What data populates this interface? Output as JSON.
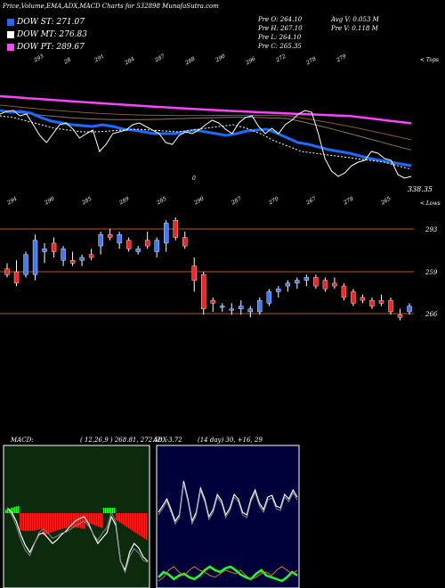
{
  "header": {
    "title": "Price,Volume,EMA,ADX,MACD Charts for 532898 MunafaSutra.com",
    "legend": [
      {
        "label": "DOW ST: 271.07",
        "color": "#1e6bff"
      },
      {
        "label": "DOW MT: 276.83",
        "color": "#ffffff"
      },
      {
        "label": "DOW PT: 289.67",
        "color": "#ff44ff"
      }
    ],
    "ohlc": [
      "Pre O: 264.10",
      "Pre H: 267.10",
      "Pre L: 264.10",
      "Pre C: 265.35"
    ],
    "volume": [
      "Avg V: 0.053 M",
      "Pre V: 0.118 M"
    ],
    "top_right_tag": "< Tops",
    "bottom_right_tag": "< Lows",
    "last_price": "338.35"
  },
  "colors": {
    "ema_st": "#1e6bff",
    "ema_mt": "#ffffff",
    "ema_pt": "#ff44ff",
    "bull": "#3a7bff",
    "bear": "#ff2020",
    "level": "#b05a2a"
  },
  "chart_data": [
    {
      "type": "line",
      "name": "ema-panel",
      "top_labels": [
        "293",
        "28",
        "291",
        "284",
        "287",
        "288",
        "290",
        "296",
        "272",
        "278",
        "279"
      ],
      "bottom_labels": [
        "294",
        "290",
        "285",
        "289",
        "285",
        "290",
        "287",
        "270",
        "267",
        "278",
        "265"
      ],
      "mid_label": "0"
    },
    {
      "type": "candlestick",
      "name": "price-panel",
      "levels": [
        {
          "value": 293,
          "label": "293"
        },
        {
          "value": 259,
          "label": "259"
        },
        {
          "value": 266,
          "label": "266"
        }
      ],
      "candles": [
        {
          "o": 278,
          "h": 280,
          "l": 275,
          "c": 276
        },
        {
          "o": 277,
          "h": 281,
          "l": 272,
          "c": 273
        },
        {
          "o": 276,
          "h": 284,
          "l": 275,
          "c": 283
        },
        {
          "o": 276,
          "h": 290,
          "l": 274,
          "c": 288
        },
        {
          "o": 284,
          "h": 287,
          "l": 280,
          "c": 285
        },
        {
          "o": 287,
          "h": 289,
          "l": 282,
          "c": 284
        },
        {
          "o": 281,
          "h": 286,
          "l": 279,
          "c": 285
        },
        {
          "o": 281,
          "h": 284,
          "l": 279,
          "c": 280
        },
        {
          "o": 281,
          "h": 283,
          "l": 279,
          "c": 282
        },
        {
          "o": 283,
          "h": 285,
          "l": 281,
          "c": 282
        },
        {
          "o": 286,
          "h": 291,
          "l": 283,
          "c": 290
        },
        {
          "o": 290,
          "h": 292,
          "l": 288,
          "c": 289
        },
        {
          "o": 287,
          "h": 291,
          "l": 285,
          "c": 290
        },
        {
          "o": 288,
          "h": 289,
          "l": 284,
          "c": 285
        },
        {
          "o": 284,
          "h": 286,
          "l": 283,
          "c": 285
        },
        {
          "o": 288,
          "h": 291,
          "l": 285,
          "c": 286
        },
        {
          "o": 284,
          "h": 289,
          "l": 282,
          "c": 288
        },
        {
          "o": 287,
          "h": 295,
          "l": 284,
          "c": 294
        },
        {
          "o": 295,
          "h": 296,
          "l": 288,
          "c": 289
        },
        {
          "o": 289,
          "h": 291,
          "l": 285,
          "c": 286
        },
        {
          "o": 279,
          "h": 282,
          "l": 270,
          "c": 274
        },
        {
          "o": 276,
          "h": 277,
          "l": 262,
          "c": 264
        },
        {
          "o": 267,
          "h": 268,
          "l": 263,
          "c": 266
        },
        {
          "o": 265,
          "h": 266,
          "l": 263,
          "c": 265
        },
        {
          "o": 264,
          "h": 266,
          "l": 262,
          "c": 264
        },
        {
          "o": 264,
          "h": 267,
          "l": 262,
          "c": 265
        },
        {
          "o": 263,
          "h": 265,
          "l": 261,
          "c": 264
        },
        {
          "o": 263,
          "h": 268,
          "l": 262,
          "c": 267
        },
        {
          "o": 266,
          "h": 271,
          "l": 265,
          "c": 270
        },
        {
          "o": 270,
          "h": 272,
          "l": 268,
          "c": 271
        },
        {
          "o": 272,
          "h": 274,
          "l": 270,
          "c": 273
        },
        {
          "o": 273,
          "h": 275,
          "l": 271,
          "c": 274
        },
        {
          "o": 274,
          "h": 276,
          "l": 272,
          "c": 275
        },
        {
          "o": 275,
          "h": 276,
          "l": 271,
          "c": 272
        },
        {
          "o": 274,
          "h": 275,
          "l": 270,
          "c": 271
        },
        {
          "o": 273,
          "h": 275,
          "l": 271,
          "c": 272
        },
        {
          "o": 272,
          "h": 273,
          "l": 267,
          "c": 268
        },
        {
          "o": 270,
          "h": 271,
          "l": 265,
          "c": 266
        },
        {
          "o": 268,
          "h": 269,
          "l": 266,
          "c": 267
        },
        {
          "o": 267,
          "h": 268,
          "l": 264,
          "c": 265
        },
        {
          "o": 267,
          "h": 269,
          "l": 265,
          "c": 266
        },
        {
          "o": 267,
          "h": 268,
          "l": 262,
          "c": 263
        },
        {
          "o": 262,
          "h": 264,
          "l": 260,
          "c": 261
        },
        {
          "o": 263,
          "h": 266,
          "l": 262,
          "c": 265
        }
      ]
    },
    {
      "type": "line",
      "name": "macd-panel",
      "label": "MACD:",
      "params": "( 12,26,9 ) 268.81,  272.58,  -3.72"
    },
    {
      "type": "line",
      "name": "adx-panel",
      "label": "ADX",
      "params": "(14  day) 30,  +16,  29"
    }
  ]
}
